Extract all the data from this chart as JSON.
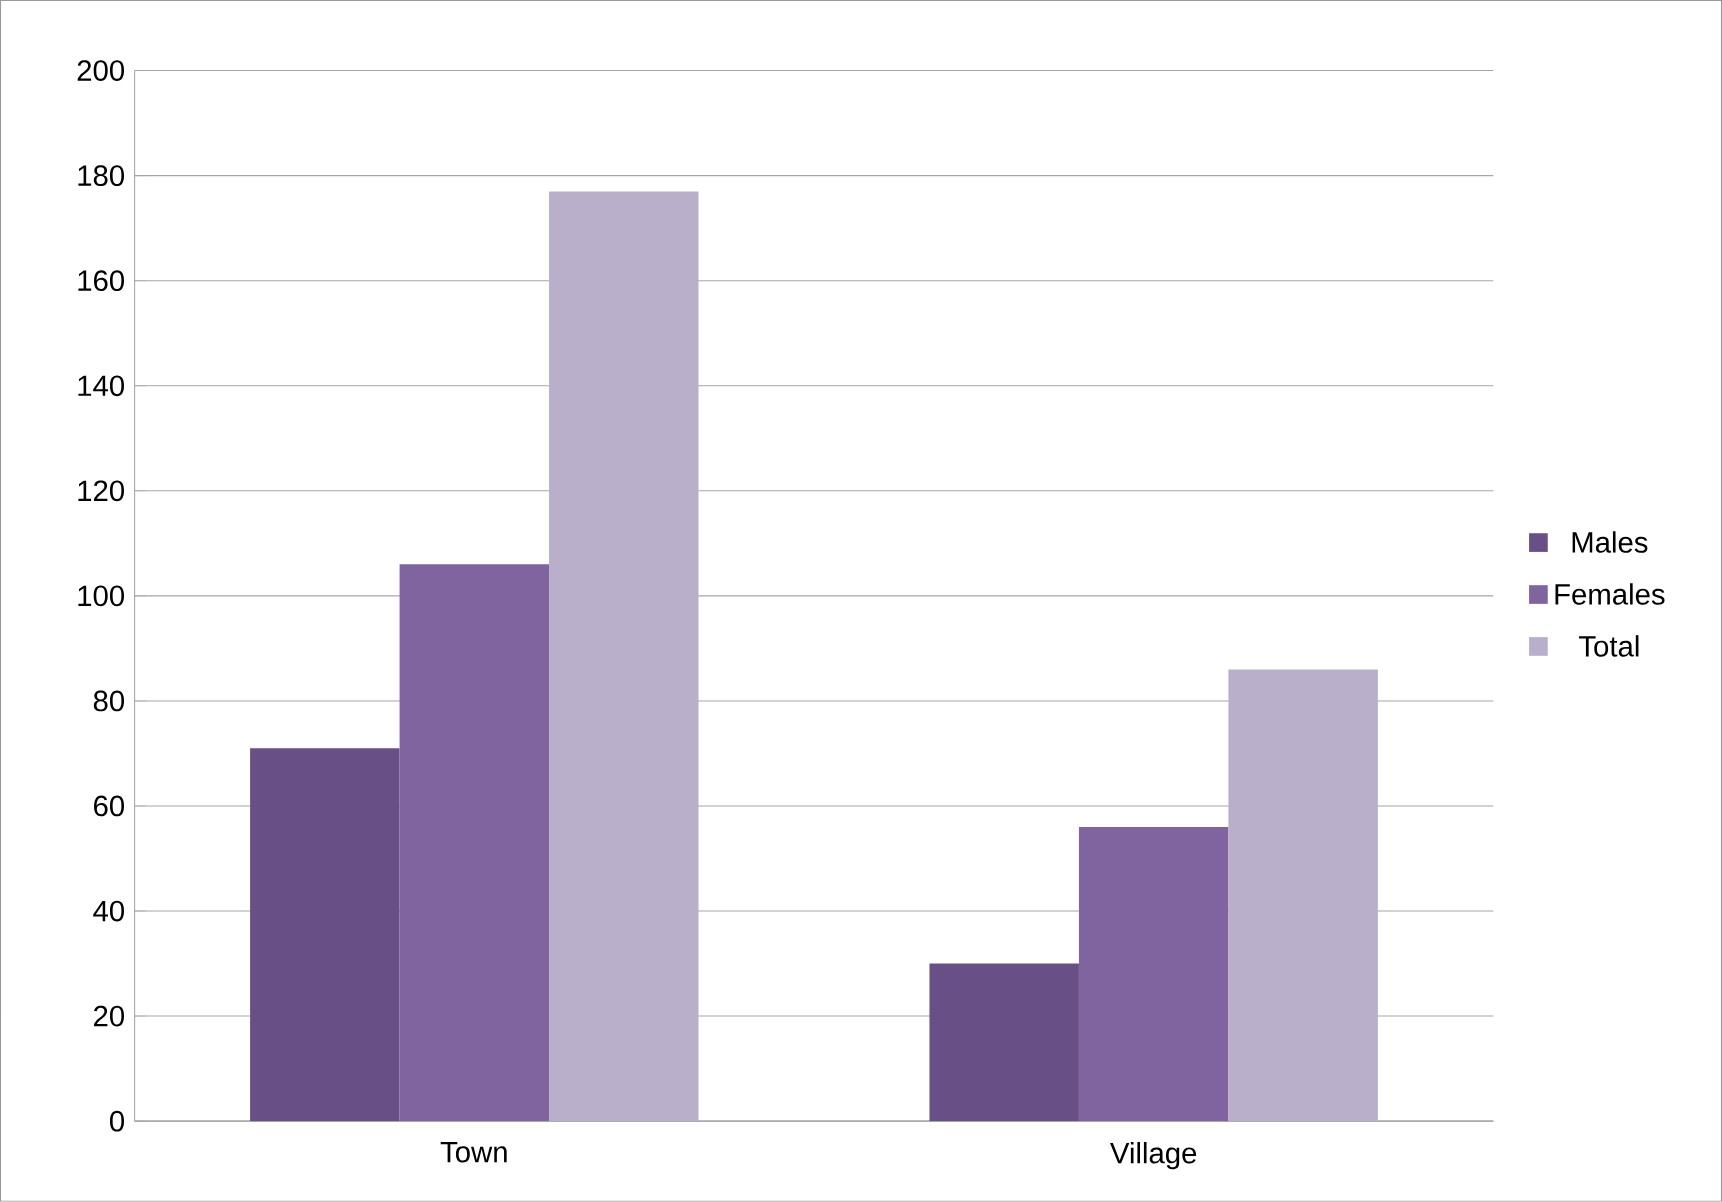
{
  "chart_data": {
    "type": "bar",
    "categories": [
      "Town",
      "Village"
    ],
    "series": [
      {
        "name": "Males",
        "color": "#684f86",
        "values": [
          71,
          30
        ]
      },
      {
        "name": "Females",
        "color": "#8064a0",
        "values": [
          106,
          56
        ]
      },
      {
        "name": "Total",
        "color": "#b9afca",
        "values": [
          177,
          86
        ]
      }
    ],
    "ylim": [
      0,
      200
    ],
    "yticks": [
      0,
      20,
      40,
      60,
      80,
      100,
      120,
      140,
      160,
      180,
      200
    ],
    "grid": "y",
    "legend": "right"
  }
}
